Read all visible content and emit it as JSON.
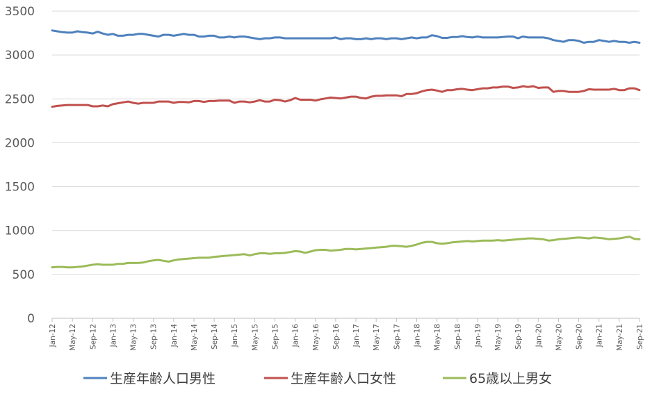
{
  "chart_data": {
    "type": "line",
    "title": "",
    "xlabel": "",
    "ylabel": "",
    "ylim": [
      0,
      3500
    ],
    "yticks": [
      0,
      500,
      1000,
      1500,
      2000,
      2500,
      3000,
      3500
    ],
    "grid": true,
    "legend_position": "bottom",
    "x": [
      "Jan-12",
      "Feb-12",
      "Mar-12",
      "Apr-12",
      "May-12",
      "Jun-12",
      "Jul-12",
      "Aug-12",
      "Sep-12",
      "Oct-12",
      "Nov-12",
      "Dec-12",
      "Jan-13",
      "Feb-13",
      "Mar-13",
      "Apr-13",
      "May-13",
      "Jun-13",
      "Jul-13",
      "Aug-13",
      "Sep-13",
      "Oct-13",
      "Nov-13",
      "Dec-13",
      "Jan-14",
      "Feb-14",
      "Mar-14",
      "Apr-14",
      "May-14",
      "Jun-14",
      "Jul-14",
      "Aug-14",
      "Sep-14",
      "Oct-14",
      "Nov-14",
      "Dec-14",
      "Jan-15",
      "Feb-15",
      "Mar-15",
      "Apr-15",
      "May-15",
      "Jun-15",
      "Jul-15",
      "Aug-15",
      "Sep-15",
      "Oct-15",
      "Nov-15",
      "Dec-15",
      "Jan-16",
      "Feb-16",
      "Mar-16",
      "Apr-16",
      "May-16",
      "Jun-16",
      "Jul-16",
      "Aug-16",
      "Sep-16",
      "Oct-16",
      "Nov-16",
      "Dec-16",
      "Jan-17",
      "Feb-17",
      "Mar-17",
      "Apr-17",
      "May-17",
      "Jun-17",
      "Jul-17",
      "Aug-17",
      "Sep-17",
      "Oct-17",
      "Nov-17",
      "Dec-17",
      "Jan-18",
      "Feb-18",
      "Mar-18",
      "Apr-18",
      "May-18",
      "Jun-18",
      "Jul-18",
      "Aug-18",
      "Sep-18",
      "Oct-18",
      "Nov-18",
      "Dec-18",
      "Jan-19",
      "Feb-19",
      "Mar-19",
      "Apr-19",
      "May-19",
      "Jun-19",
      "Jul-19",
      "Aug-19",
      "Sep-19",
      "Oct-19",
      "Nov-19",
      "Dec-19",
      "Jan-20",
      "Feb-20",
      "Mar-20",
      "Apr-20",
      "May-20",
      "Jun-20",
      "Jul-20",
      "Aug-20",
      "Sep-20",
      "Oct-20",
      "Nov-20",
      "Dec-20",
      "Jan-21",
      "Feb-21",
      "Mar-21",
      "Apr-21",
      "May-21",
      "Jun-21",
      "Jul-21",
      "Aug-21",
      "Sep-21"
    ],
    "tick_labels": [
      "Jan-12",
      "May-12",
      "Sep-12",
      "Jan-13",
      "May-13",
      "Sep-13",
      "Jan-14",
      "May-14",
      "Sep-14",
      "Jan-15",
      "May-15",
      "Sep-15",
      "Jan-16",
      "May-16",
      "Sep-16",
      "Jan-17",
      "May-17",
      "Sep-17",
      "Jan-18",
      "May-18",
      "Sep-18",
      "Jan-19",
      "May-19",
      "Sep-19",
      "Jan-20",
      "May-20",
      "Sep-20",
      "Jan-21",
      "May-21",
      "Sep-21"
    ],
    "series": [
      {
        "name": "生産年齢人口男性",
        "color": "#4F81BD",
        "values": [
          3280,
          3270,
          3260,
          3255,
          3255,
          3270,
          3260,
          3255,
          3245,
          3265,
          3245,
          3230,
          3240,
          3220,
          3220,
          3230,
          3230,
          3240,
          3240,
          3230,
          3220,
          3210,
          3230,
          3230,
          3220,
          3230,
          3240,
          3230,
          3230,
          3210,
          3210,
          3220,
          3220,
          3200,
          3200,
          3210,
          3200,
          3210,
          3210,
          3200,
          3190,
          3180,
          3190,
          3190,
          3200,
          3200,
          3190,
          3190,
          3190,
          3190,
          3190,
          3190,
          3190,
          3190,
          3190,
          3190,
          3200,
          3180,
          3190,
          3190,
          3180,
          3180,
          3190,
          3180,
          3190,
          3190,
          3180,
          3190,
          3190,
          3180,
          3190,
          3200,
          3190,
          3200,
          3200,
          3225,
          3215,
          3195,
          3195,
          3205,
          3205,
          3215,
          3205,
          3200,
          3210,
          3200,
          3200,
          3200,
          3200,
          3205,
          3210,
          3210,
          3190,
          3210,
          3200,
          3200,
          3200,
          3200,
          3190,
          3170,
          3160,
          3150,
          3170,
          3170,
          3160,
          3140,
          3150,
          3150,
          3170,
          3160,
          3150,
          3160,
          3150,
          3150,
          3140,
          3150,
          3140
        ]
      },
      {
        "name": "生産年齢人口女性",
        "color": "#C0504D",
        "values": [
          2410,
          2420,
          2425,
          2430,
          2430,
          2430,
          2430,
          2430,
          2415,
          2415,
          2425,
          2415,
          2440,
          2450,
          2460,
          2470,
          2455,
          2445,
          2455,
          2455,
          2455,
          2470,
          2470,
          2470,
          2455,
          2465,
          2465,
          2460,
          2475,
          2475,
          2465,
          2475,
          2475,
          2480,
          2480,
          2480,
          2455,
          2470,
          2470,
          2460,
          2470,
          2485,
          2470,
          2470,
          2490,
          2485,
          2470,
          2485,
          2510,
          2490,
          2490,
          2490,
          2480,
          2495,
          2505,
          2515,
          2510,
          2505,
          2515,
          2525,
          2525,
          2510,
          2505,
          2525,
          2535,
          2535,
          2540,
          2540,
          2540,
          2530,
          2555,
          2555,
          2565,
          2585,
          2600,
          2605,
          2595,
          2580,
          2600,
          2600,
          2610,
          2615,
          2605,
          2600,
          2610,
          2620,
          2620,
          2630,
          2630,
          2640,
          2640,
          2625,
          2630,
          2645,
          2635,
          2645,
          2625,
          2630,
          2630,
          2580,
          2590,
          2590,
          2580,
          2580,
          2580,
          2590,
          2610,
          2605,
          2605,
          2605,
          2605,
          2615,
          2600,
          2600,
          2620,
          2620,
          2600
        ]
      },
      {
        "name": "65歳以上男女",
        "color": "#9BBB59",
        "values": [
          580,
          585,
          585,
          580,
          580,
          585,
          590,
          600,
          610,
          615,
          610,
          610,
          610,
          620,
          620,
          630,
          630,
          630,
          635,
          650,
          660,
          665,
          655,
          645,
          660,
          670,
          675,
          680,
          685,
          690,
          690,
          690,
          700,
          705,
          710,
          715,
          720,
          725,
          730,
          715,
          730,
          740,
          740,
          735,
          740,
          740,
          745,
          755,
          765,
          760,
          745,
          760,
          775,
          780,
          780,
          770,
          775,
          780,
          790,
          790,
          785,
          790,
          795,
          800,
          805,
          810,
          815,
          825,
          825,
          820,
          815,
          825,
          840,
          860,
          870,
          870,
          855,
          850,
          855,
          865,
          870,
          875,
          880,
          875,
          880,
          885,
          885,
          885,
          890,
          885,
          890,
          895,
          900,
          905,
          910,
          910,
          905,
          900,
          885,
          890,
          900,
          905,
          910,
          915,
          920,
          915,
          910,
          920,
          915,
          910,
          900,
          905,
          910,
          920,
          930,
          905,
          900
        ]
      }
    ]
  }
}
